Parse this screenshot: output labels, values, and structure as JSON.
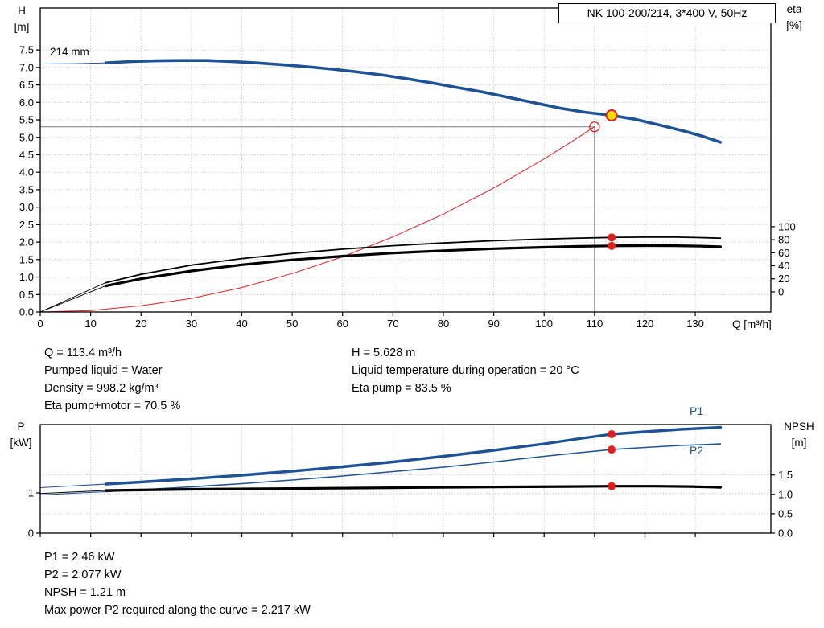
{
  "title_box": {
    "label": "NK 100-200/214, 3*400 V, 50Hz"
  },
  "colors": {
    "curve_blue": "#1d5296",
    "curve_black": "#000000",
    "marker_red": "#e01f1f",
    "duty_yellow": "#ffd900",
    "crosshair_gray": "#7d7d7d",
    "grid_gray": "#909090"
  },
  "chart_data": [
    {
      "id": "qh-chart",
      "type": "line",
      "impeller_label": "214 mm",
      "x_axis": {
        "label": "Q [m³/h]",
        "domain": [
          0,
          145
        ],
        "ticks": [
          0,
          10,
          20,
          30,
          40,
          50,
          60,
          70,
          80,
          90,
          100,
          110,
          120,
          130
        ],
        "labels_visible": true
      },
      "left_axis": {
        "label_lines": [
          "H",
          "[m]"
        ],
        "range": [
          0,
          8.7
        ],
        "decimals": 1,
        "ticks": [
          0,
          0.5,
          1,
          1.5,
          2,
          2.5,
          3,
          3.5,
          4,
          4.5,
          5,
          5.5,
          6,
          6.5,
          7,
          7.5
        ]
      },
      "right_axis": {
        "label_lines": [
          "eta",
          "[%]"
        ],
        "range": [
          -31,
          436
        ],
        "decimals": 0,
        "ticks": [
          0,
          20,
          40,
          60,
          80,
          100
        ]
      },
      "grid_from_right_axis": false,
      "crosshair": {
        "q": 110,
        "v": 5.3,
        "color": "#7d7d7d"
      },
      "series": [
        {
          "name": "qh-curve-lead",
          "axis": "left",
          "color": "#1d5296",
          "width": 1,
          "points": [
            [
              0,
              7.1
            ],
            [
              7,
              7.11
            ],
            [
              13,
              7.13
            ]
          ]
        },
        {
          "name": "qh-curve",
          "axis": "left",
          "color": "#1d5296",
          "width": 3.6,
          "points": [
            [
              13,
              7.13
            ],
            [
              18,
              7.17
            ],
            [
              23,
              7.19
            ],
            [
              28,
              7.2
            ],
            [
              33,
              7.2
            ],
            [
              38,
              7.17
            ],
            [
              43,
              7.13
            ],
            [
              48,
              7.08
            ],
            [
              53,
              7.02
            ],
            [
              58,
              6.95
            ],
            [
              63,
              6.87
            ],
            [
              68,
              6.78
            ],
            [
              73,
              6.67
            ],
            [
              78,
              6.55
            ],
            [
              83,
              6.42
            ],
            [
              88,
              6.29
            ],
            [
              93,
              6.14
            ],
            [
              98,
              5.99
            ],
            [
              103,
              5.84
            ],
            [
              108,
              5.72
            ],
            [
              113.4,
              5.628
            ],
            [
              118,
              5.52
            ],
            [
              123,
              5.35
            ],
            [
              128,
              5.17
            ],
            [
              131,
              5.05
            ],
            [
              135,
              4.86
            ]
          ]
        },
        {
          "name": "system-curve",
          "axis": "left",
          "color": "#e01f1f",
          "width": 1,
          "points": [
            [
              0,
              0
            ],
            [
              10,
              0.04
            ],
            [
              20,
              0.18
            ],
            [
              30,
              0.39
            ],
            [
              40,
              0.7
            ],
            [
              50,
              1.1
            ],
            [
              60,
              1.58
            ],
            [
              70,
              2.15
            ],
            [
              80,
              2.8
            ],
            [
              90,
              3.55
            ],
            [
              100,
              4.38
            ],
            [
              105,
              4.83
            ],
            [
              110,
              5.3
            ]
          ]
        },
        {
          "name": "eta-pump-lead",
          "axis": "left",
          "color": "#000000",
          "width": 0.9,
          "points": [
            [
              0,
              0
            ],
            [
              13,
              0.84
            ]
          ]
        },
        {
          "name": "eta-pump-curve",
          "axis": "right",
          "color": "#000000",
          "width": 1.8,
          "points": [
            [
              13,
              14
            ],
            [
              20,
              27
            ],
            [
              30,
              41
            ],
            [
              40,
              51
            ],
            [
              50,
              59
            ],
            [
              60,
              65.5
            ],
            [
              70,
              70.8
            ],
            [
              80,
              75
            ],
            [
              90,
              78.4
            ],
            [
              100,
              81
            ],
            [
              107,
              82.5
            ],
            [
              113.4,
              83.5
            ],
            [
              120,
              84
            ],
            [
              126,
              84
            ],
            [
              131,
              83.3
            ],
            [
              135,
              82.4
            ]
          ]
        },
        {
          "name": "eta-pump-motor-lead",
          "axis": "left",
          "color": "#000000",
          "width": 0.9,
          "points": [
            [
              0,
              0
            ],
            [
              13,
              0.75
            ]
          ]
        },
        {
          "name": "eta-pump-motor-curve",
          "axis": "right",
          "color": "#000000",
          "width": 3.2,
          "points": [
            [
              13,
              9
            ],
            [
              20,
              20
            ],
            [
              30,
              32
            ],
            [
              40,
              41.5
            ],
            [
              50,
              49
            ],
            [
              60,
              54.8
            ],
            [
              70,
              59.5
            ],
            [
              80,
              63.2
            ],
            [
              90,
              66.2
            ],
            [
              100,
              68.5
            ],
            [
              107,
              69.8
            ],
            [
              113.4,
              70.5
            ],
            [
              120,
              70.9
            ],
            [
              126,
              70.8
            ],
            [
              131,
              70.2
            ],
            [
              135,
              69.2
            ]
          ]
        }
      ],
      "markers": [
        {
          "name": "selected-point-marker",
          "axis": "left",
          "q": 110,
          "v": 5.3,
          "r": 6,
          "fill": "none",
          "stroke": "#e01f1f",
          "sw": 1.3,
          "interactable": false
        },
        {
          "name": "duty-point",
          "axis": "left",
          "q": 113.4,
          "v": 5.628,
          "r": 6.5,
          "fill": "#ffd900",
          "stroke": "#e01f1f",
          "sw": 2,
          "interactable": true
        },
        {
          "name": "eta-pump-duty-dot",
          "axis": "right",
          "q": 113.4,
          "v": 83.5,
          "r": 5,
          "fill": "#e01f1f",
          "stroke": "none",
          "sw": 0,
          "interactable": false
        },
        {
          "name": "eta-pump-motor-duty-dot",
          "axis": "right",
          "q": 113.4,
          "v": 70.5,
          "r": 5,
          "fill": "#e01f1f",
          "stroke": "none",
          "sw": 0,
          "interactable": false
        }
      ]
    },
    {
      "id": "power-npsh-chart",
      "type": "line",
      "x_axis": {
        "label": "",
        "domain": [
          0,
          145
        ],
        "ticks": [
          0,
          10,
          20,
          30,
          40,
          50,
          60,
          70,
          80,
          90,
          100,
          110,
          120,
          130
        ],
        "labels_visible": false
      },
      "left_axis": {
        "label_lines": [
          "P",
          "[kW]"
        ],
        "range": [
          0,
          2.7
        ],
        "decimals": 0,
        "ticks": [
          0,
          1
        ]
      },
      "right_axis": {
        "label_lines": [
          "NPSH",
          "[m]"
        ],
        "range": [
          0,
          2.8
        ],
        "decimals": 1,
        "ticks": [
          0,
          0.5,
          1,
          1.5
        ]
      },
      "grid_from_right_axis": true,
      "series": [
        {
          "name": "p1-lead",
          "axis": "left",
          "color": "#1d5296",
          "width": 1,
          "points": [
            [
              0,
              1.13
            ],
            [
              13,
              1.22
            ]
          ]
        },
        {
          "name": "p1-curve",
          "axis": "left",
          "color": "#1d5296",
          "width": 3.4,
          "points": [
            [
              13,
              1.22
            ],
            [
              20,
              1.27
            ],
            [
              30,
              1.35
            ],
            [
              40,
              1.44
            ],
            [
              50,
              1.54
            ],
            [
              60,
              1.65
            ],
            [
              70,
              1.77
            ],
            [
              80,
              1.91
            ],
            [
              90,
              2.06
            ],
            [
              100,
              2.22
            ],
            [
              107,
              2.35
            ],
            [
              113.4,
              2.46
            ],
            [
              120,
              2.52
            ],
            [
              127,
              2.58
            ],
            [
              135,
              2.63
            ]
          ]
        },
        {
          "name": "p2-lead",
          "axis": "left",
          "color": "#1d5296",
          "width": 1,
          "points": [
            [
              0,
              0.95
            ],
            [
              13,
              1.03
            ]
          ]
        },
        {
          "name": "p2-curve",
          "axis": "left",
          "color": "#1d5296",
          "width": 1.6,
          "points": [
            [
              13,
              1.03
            ],
            [
              20,
              1.08
            ],
            [
              30,
              1.15
            ],
            [
              40,
              1.23
            ],
            [
              50,
              1.32
            ],
            [
              60,
              1.42
            ],
            [
              70,
              1.53
            ],
            [
              80,
              1.64
            ],
            [
              90,
              1.77
            ],
            [
              100,
              1.91
            ],
            [
              107,
              2.0
            ],
            [
              113.4,
              2.077
            ],
            [
              120,
              2.13
            ],
            [
              127,
              2.18
            ],
            [
              135,
              2.217
            ]
          ]
        },
        {
          "name": "npsh-lead",
          "axis": "right",
          "color": "#000000",
          "width": 1,
          "points": [
            [
              0,
              1.02
            ],
            [
              13,
              1.1
            ]
          ]
        },
        {
          "name": "npsh-curve",
          "axis": "right",
          "color": "#000000",
          "width": 3.2,
          "points": [
            [
              13,
              1.1
            ],
            [
              30,
              1.13
            ],
            [
              50,
              1.15
            ],
            [
              70,
              1.17
            ],
            [
              90,
              1.19
            ],
            [
              105,
              1.2
            ],
            [
              113.4,
              1.21
            ],
            [
              122,
              1.21
            ],
            [
              129,
              1.2
            ],
            [
              135,
              1.18
            ]
          ]
        }
      ],
      "markers": [
        {
          "name": "p1-duty-dot",
          "axis": "left",
          "q": 113.4,
          "v": 2.46,
          "r": 5,
          "fill": "#e01f1f",
          "stroke": "none",
          "sw": 0,
          "interactable": false
        },
        {
          "name": "p2-duty-dot",
          "axis": "left",
          "q": 113.4,
          "v": 2.077,
          "r": 5,
          "fill": "#e01f1f",
          "stroke": "none",
          "sw": 0,
          "interactable": false
        },
        {
          "name": "npsh-duty-dot",
          "axis": "right",
          "q": 113.4,
          "v": 1.21,
          "r": 5,
          "fill": "#e01f1f",
          "stroke": "none",
          "sw": 0,
          "interactable": false
        }
      ]
    }
  ],
  "curve_labels": {
    "p1": "P1",
    "p2": "P2"
  },
  "operating_point_info": {
    "left": [
      "Q = 113.4 m³/h",
      "Pumped liquid = Water",
      "Density = 998.2 kg/m³",
      "Eta pump+motor = 70.5 %"
    ],
    "right": [
      "H = 5.628 m",
      "Liquid temperature during operation = 20 °C",
      "Eta pump = 83.5 %"
    ]
  },
  "power_info": [
    "P1 = 2.46 kW",
    "P2 = 2.077 kW",
    "NPSH = 1.21 m",
    "Max power P2 required along the curve = 2.217 kW"
  ]
}
